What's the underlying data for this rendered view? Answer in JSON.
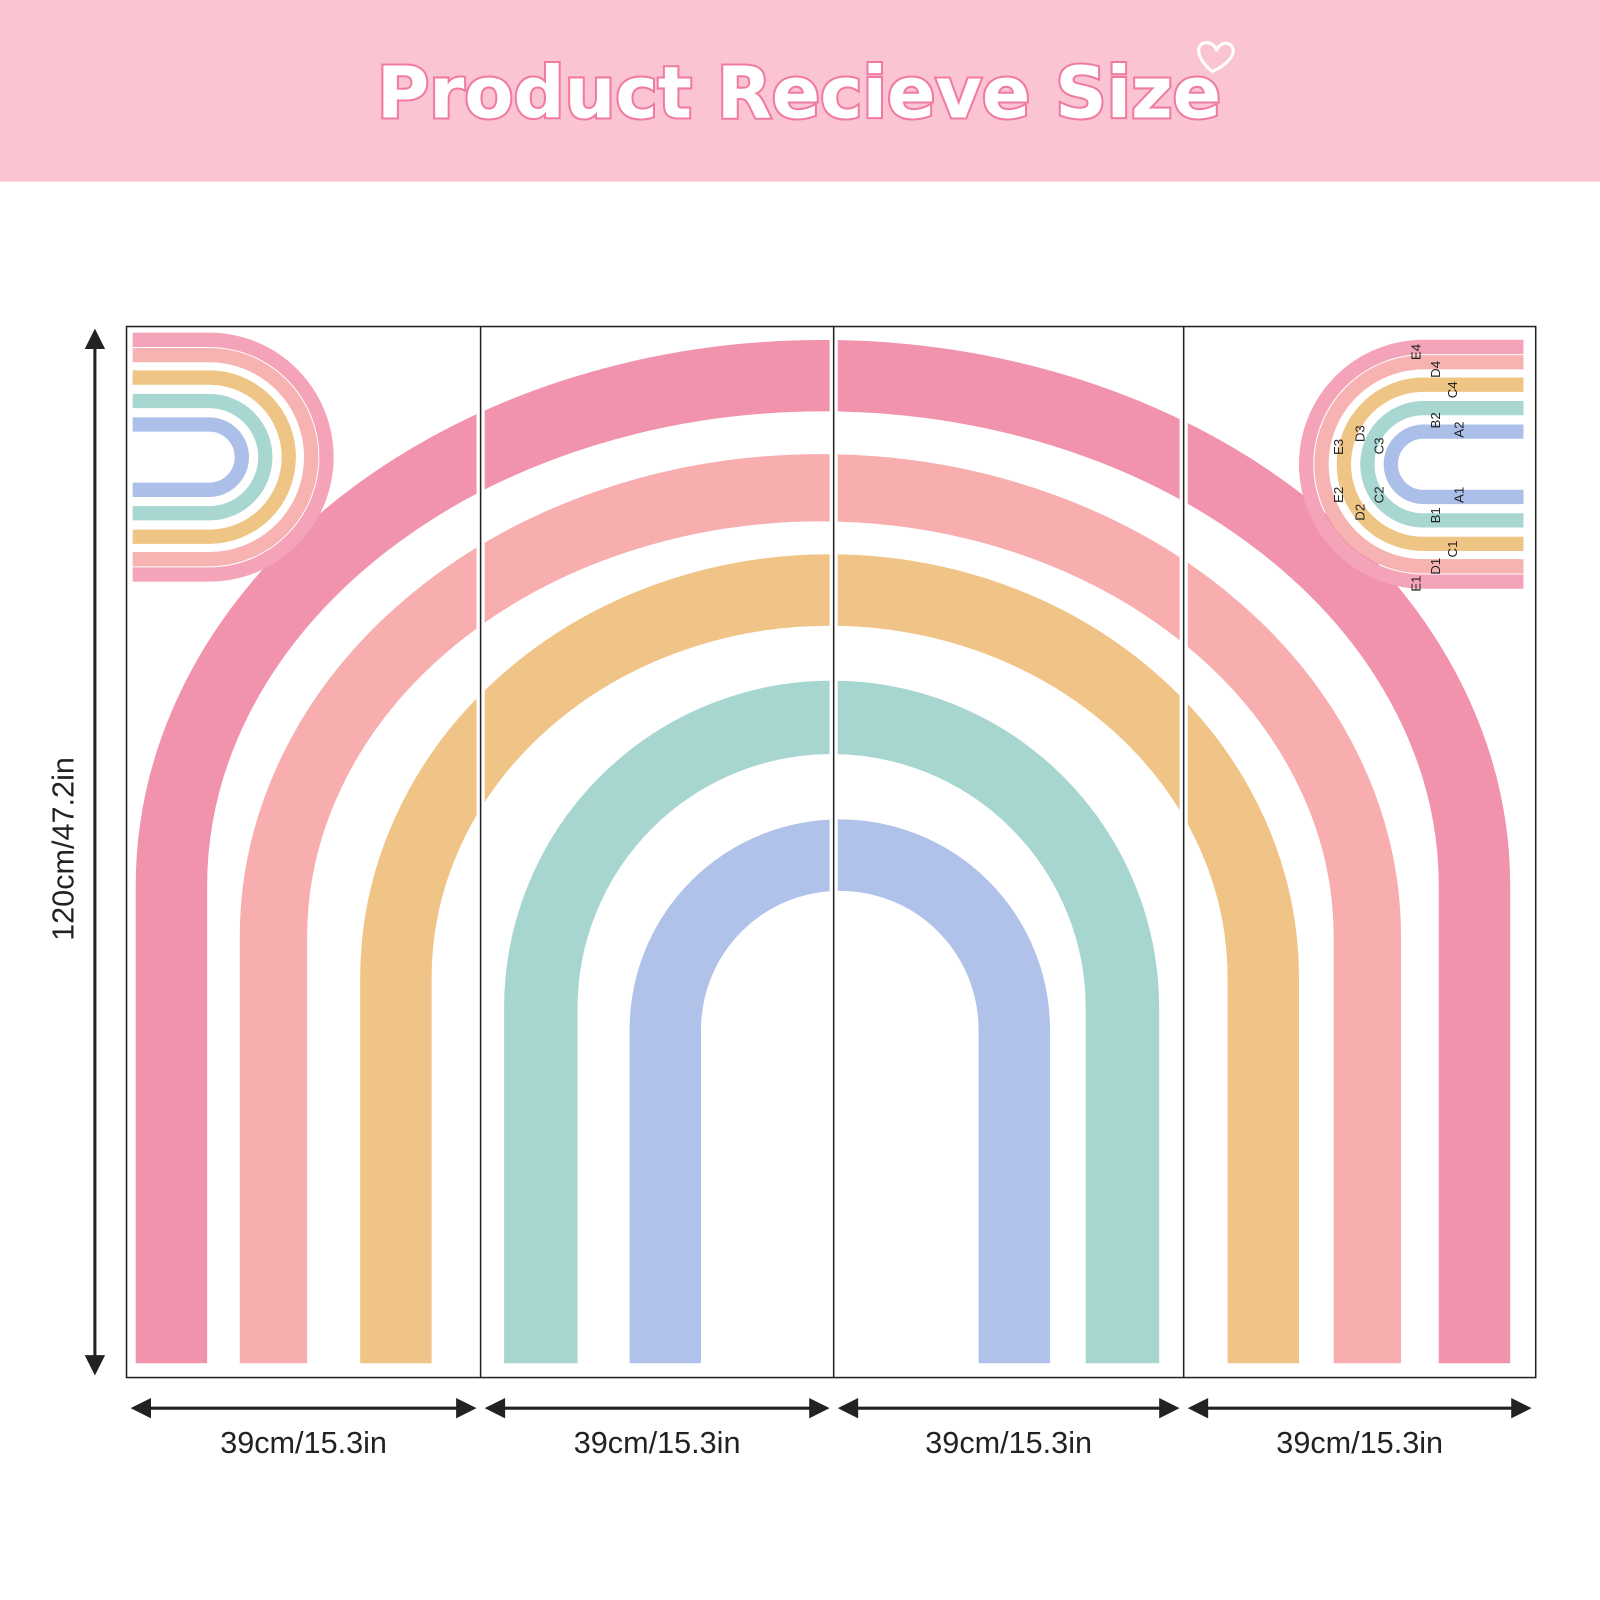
{
  "header": {
    "title": "Product Recieve Size"
  },
  "dimensions": {
    "height": "120cm/47.2in",
    "widths": [
      "39cm/15.3in",
      "39cm/15.3in",
      "39cm/15.3in",
      "39cm/15.3in"
    ]
  },
  "part_labels": [
    "E4",
    "D4",
    "C4",
    "B2",
    "A2",
    "E3",
    "D3",
    "C3",
    "E2",
    "D2",
    "C2",
    "B1",
    "A1",
    "D1",
    "C1",
    "E1"
  ]
}
